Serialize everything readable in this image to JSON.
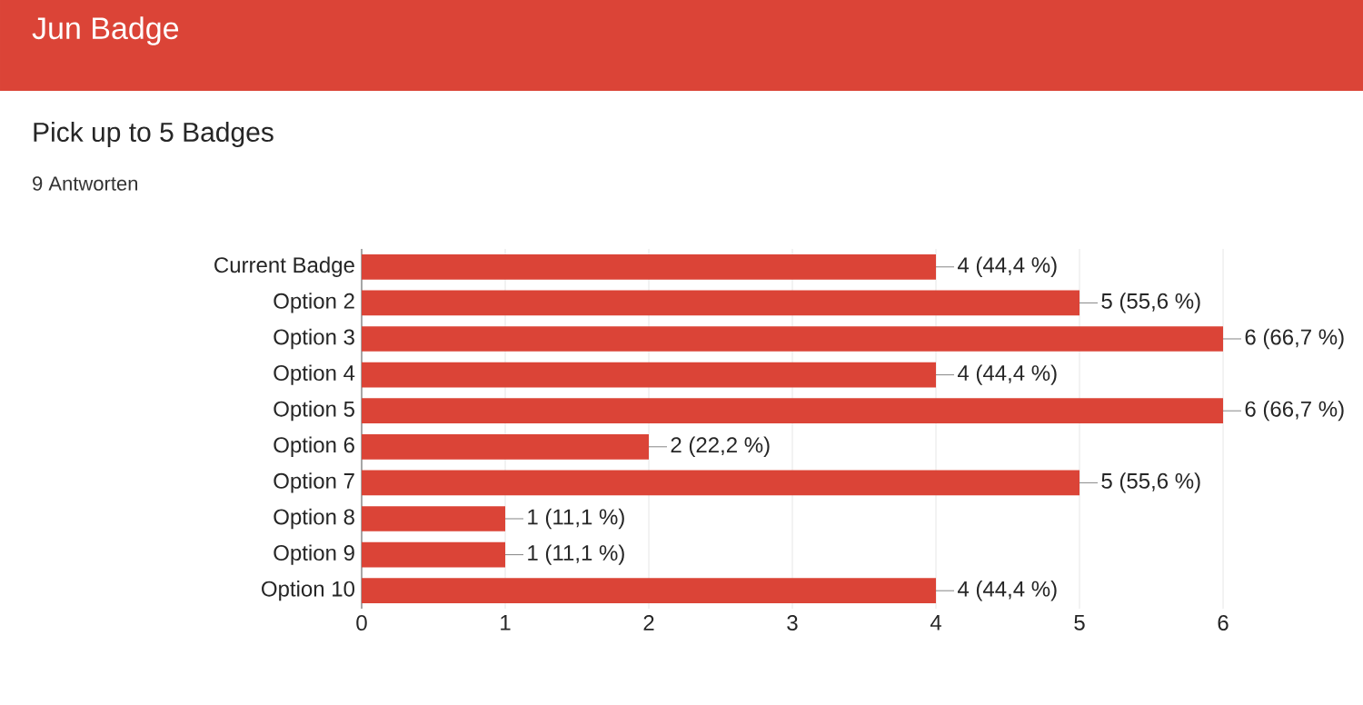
{
  "chart_data": {
    "type": "bar",
    "orientation": "horizontal",
    "title": "Pick up to 5 Badges",
    "subtitle": "9 Antworten",
    "annotations": [
      "Jun Badge"
    ],
    "categories": [
      "Current Badge",
      "Option 2",
      "Option 3",
      "Option 4",
      "Option 5",
      "Option 6",
      "Option 7",
      "Option 8",
      "Option 9",
      "Option 10"
    ],
    "values": [
      4,
      5,
      6,
      4,
      6,
      2,
      5,
      1,
      1,
      4
    ],
    "value_labels": [
      "4 (44,4 %)",
      "5 (55,6 %)",
      "6 (66,7 %)",
      "4 (44,4 %)",
      "6 (66,7 %)",
      "2 (22,2 %)",
      "5 (55,6 %)",
      "1 (11,1 %)",
      "1 (11,1 %)",
      "4 (44,4 %)"
    ],
    "color": "#db4437",
    "xlim": [
      0,
      6
    ],
    "xticks": [
      0,
      1,
      2,
      3,
      4,
      5,
      6
    ],
    "grid": "x"
  }
}
